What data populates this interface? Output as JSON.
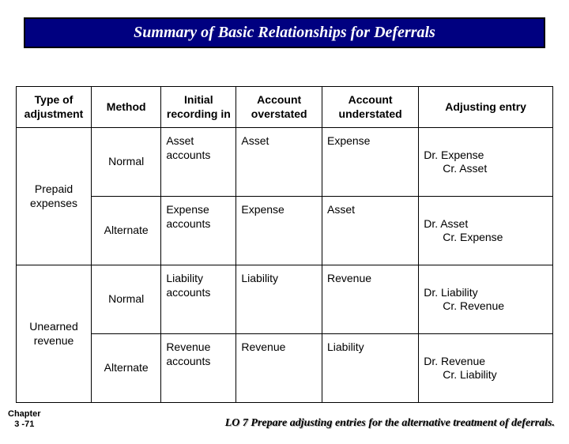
{
  "title": "Summary of Basic Relationships for Deferrals",
  "banner_bg": "#000080",
  "banner_text_color": "#ffffff",
  "table": {
    "columns": [
      "Type of adjustment",
      "Method",
      "Initial recording in",
      "Account overstated",
      "Account understated",
      "Adjusting entry"
    ],
    "groups": [
      {
        "label": "Prepaid expenses",
        "rows": [
          {
            "method": "Normal",
            "initial": "Asset accounts",
            "over": "Asset",
            "under": "Expense",
            "adj_dr": "Dr. Expense",
            "adj_cr": "Cr. Asset"
          },
          {
            "method": "Alternate",
            "initial": "Expense accounts",
            "over": "Expense",
            "under": "Asset",
            "adj_dr": "Dr. Asset",
            "adj_cr": "Cr. Expense"
          }
        ]
      },
      {
        "label": "Unearned revenue",
        "rows": [
          {
            "method": "Normal",
            "initial": "Liability accounts",
            "over": "Liability",
            "under": "Revenue",
            "adj_dr": "Dr. Liability",
            "adj_cr": "Cr. Revenue"
          },
          {
            "method": "Alternate",
            "initial": "Revenue accounts",
            "over": "Revenue",
            "under": "Liability",
            "adj_dr": "Dr. Revenue",
            "adj_cr": "Cr. Liability"
          }
        ]
      }
    ]
  },
  "chapter_line1": "Chapter",
  "chapter_line2": "3 -71",
  "lo_text": "LO 7  Prepare adjusting entries for the alternative treatment of deferrals."
}
